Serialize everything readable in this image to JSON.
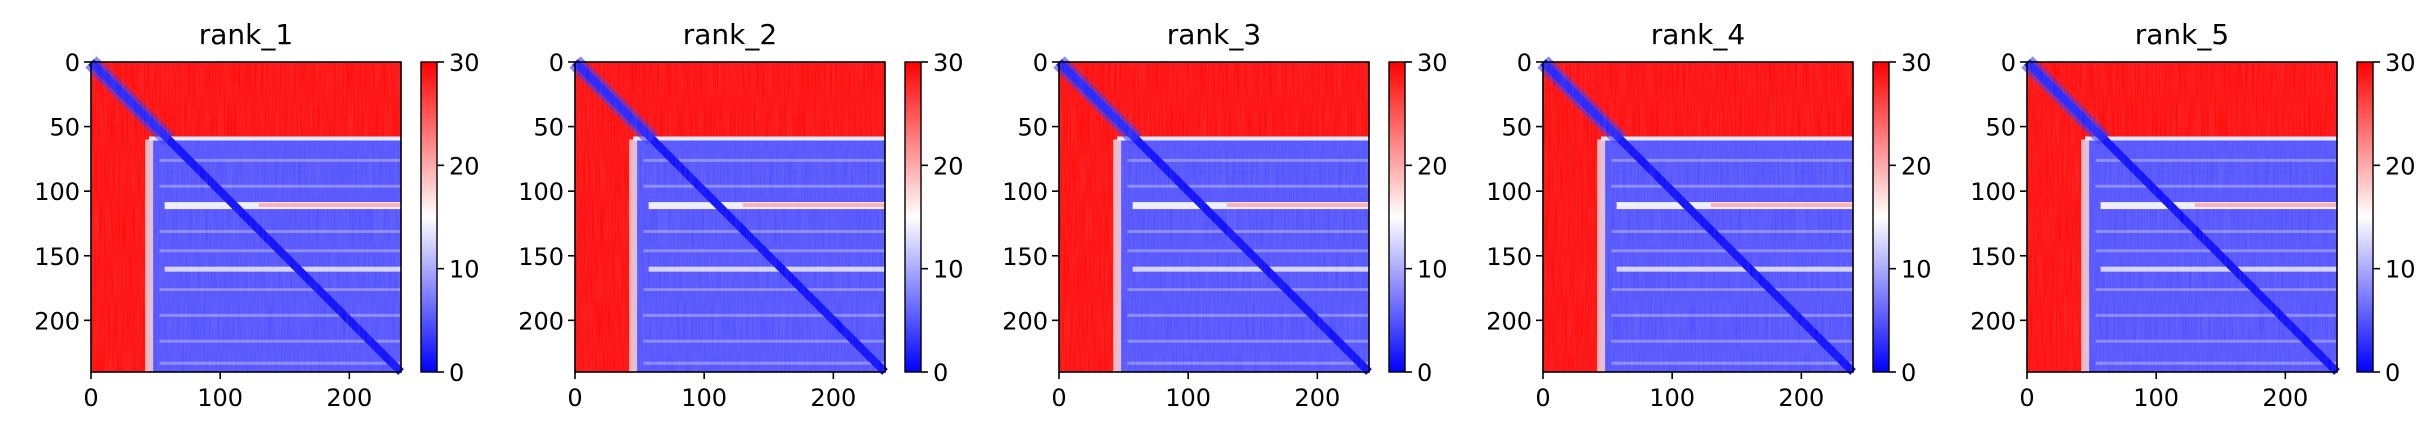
{
  "chart_data": [
    {
      "type": "heatmap",
      "title": "rank_1",
      "xlabel": "",
      "ylabel": "",
      "xlim": [
        0,
        240
      ],
      "ylim": [
        240,
        0
      ],
      "xticks": [
        "0",
        "100",
        "200"
      ],
      "yticks": [
        "0",
        "50",
        "100",
        "150",
        "200"
      ],
      "colorbar": {
        "range": [
          0,
          30
        ],
        "ticks": [
          "0",
          "10",
          "20",
          "30"
        ],
        "colormap": "bwr"
      },
      "structure": {
        "matrix_size": 240,
        "low_block_start": 60,
        "left_band_end": 45,
        "bright_rows": [
          110
        ]
      }
    },
    {
      "type": "heatmap",
      "title": "rank_2",
      "xlabel": "",
      "ylabel": "",
      "xlim": [
        0,
        240
      ],
      "ylim": [
        240,
        0
      ],
      "xticks": [
        "0",
        "100",
        "200"
      ],
      "yticks": [
        "0",
        "50",
        "100",
        "150",
        "200"
      ],
      "colorbar": {
        "range": [
          0,
          30
        ],
        "ticks": [
          "0",
          "10",
          "20",
          "30"
        ],
        "colormap": "bwr"
      },
      "structure": {
        "matrix_size": 240,
        "low_block_start": 60,
        "left_band_end": 45,
        "bright_rows": [
          110
        ]
      }
    },
    {
      "type": "heatmap",
      "title": "rank_3",
      "xlabel": "",
      "ylabel": "",
      "xlim": [
        0,
        240
      ],
      "ylim": [
        240,
        0
      ],
      "xticks": [
        "0",
        "100",
        "200"
      ],
      "yticks": [
        "0",
        "50",
        "100",
        "150",
        "200"
      ],
      "colorbar": {
        "range": [
          0,
          30
        ],
        "ticks": [
          "0",
          "10",
          "20",
          "30"
        ],
        "colormap": "bwr"
      },
      "structure": {
        "matrix_size": 240,
        "low_block_start": 60,
        "left_band_end": 45,
        "bright_rows": [
          110
        ]
      }
    },
    {
      "type": "heatmap",
      "title": "rank_4",
      "xlabel": "",
      "ylabel": "",
      "xlim": [
        0,
        240
      ],
      "ylim": [
        240,
        0
      ],
      "xticks": [
        "0",
        "100",
        "200"
      ],
      "yticks": [
        "0",
        "50",
        "100",
        "150",
        "200"
      ],
      "colorbar": {
        "range": [
          0,
          30
        ],
        "ticks": [
          "0",
          "10",
          "20",
          "30"
        ],
        "colormap": "bwr"
      },
      "structure": {
        "matrix_size": 240,
        "low_block_start": 60,
        "left_band_end": 45,
        "bright_rows": [
          110
        ]
      }
    },
    {
      "type": "heatmap",
      "title": "rank_5",
      "xlabel": "",
      "ylabel": "",
      "xlim": [
        0,
        240
      ],
      "ylim": [
        240,
        0
      ],
      "xticks": [
        "0",
        "100",
        "200"
      ],
      "yticks": [
        "0",
        "50",
        "100",
        "150",
        "200"
      ],
      "colorbar": {
        "range": [
          0,
          30
        ],
        "ticks": [
          "0",
          "10",
          "20",
          "30"
        ],
        "colormap": "bwr"
      },
      "structure": {
        "matrix_size": 240,
        "low_block_start": 60,
        "left_band_end": 45,
        "bright_rows": [
          110
        ]
      }
    }
  ],
  "colors": {
    "low": "#0000ff",
    "mid": "#ffffff",
    "high": "#ff0000",
    "axis": "#000000"
  }
}
